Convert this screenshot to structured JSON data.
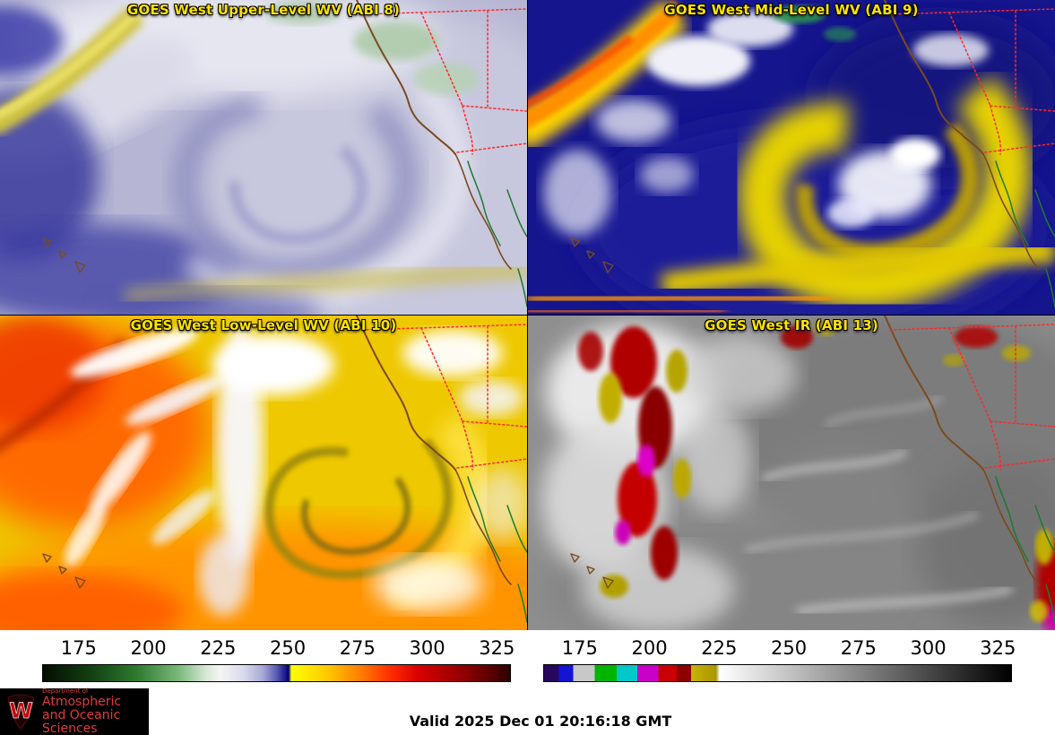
{
  "panels": [
    {
      "title": "GOES West Upper-Level WV (ABI 8)"
    },
    {
      "title": "GOES West Mid-Level WV (ABI 9)"
    },
    {
      "title": "GOES West Low-Level WV (ABI 10)"
    },
    {
      "title": "GOES West IR (ABI 13)"
    }
  ],
  "colorbars": {
    "wv": {
      "ticks": [
        "175",
        "200",
        "225",
        "250",
        "275",
        "300",
        "325"
      ],
      "stops": [
        {
          "c": "#030d03",
          "p": 0
        },
        {
          "c": "#123f12",
          "p": 10
        },
        {
          "c": "#2d7a2d",
          "p": 20
        },
        {
          "c": "#7ab87a",
          "p": 29
        },
        {
          "c": "#d8e8d8",
          "p": 35
        },
        {
          "c": "#f5f5f5",
          "p": 38
        },
        {
          "c": "#d9d9ec",
          "p": 43
        },
        {
          "c": "#a9a9d8",
          "p": 47
        },
        {
          "c": "#5a5ab4",
          "p": 50
        },
        {
          "c": "#16168c",
          "p": 52
        },
        {
          "c": "#00006e",
          "p": 52.6
        },
        {
          "c": "#ffff00",
          "p": 53.2
        },
        {
          "c": "#ffc800",
          "p": 61
        },
        {
          "c": "#ff7d00",
          "p": 68
        },
        {
          "c": "#ff3200",
          "p": 74
        },
        {
          "c": "#dc0000",
          "p": 80
        },
        {
          "c": "#a00000",
          "p": 88
        },
        {
          "c": "#640000",
          "p": 95
        },
        {
          "c": "#2d0000",
          "p": 100
        }
      ]
    },
    "ir": {
      "ticks": [
        "175",
        "200",
        "225",
        "250",
        "275",
        "300",
        "325"
      ],
      "stops": [
        {
          "c": "#28085a",
          "p": 0
        },
        {
          "c": "#28085a",
          "p": 3.2
        },
        {
          "c": "#1414d2",
          "p": 3.2
        },
        {
          "c": "#1414d2",
          "p": 6.2
        },
        {
          "c": "#c8c8c8",
          "p": 6.2
        },
        {
          "c": "#c8c8c8",
          "p": 10.8
        },
        {
          "c": "#00b400",
          "p": 10.8
        },
        {
          "c": "#00b400",
          "p": 15.5
        },
        {
          "c": "#00c8c8",
          "p": 15.5
        },
        {
          "c": "#00c8c8",
          "p": 20
        },
        {
          "c": "#c800c8",
          "p": 20
        },
        {
          "c": "#c800c8",
          "p": 24.5
        },
        {
          "c": "#c80000",
          "p": 24.5
        },
        {
          "c": "#c80000",
          "p": 28.5
        },
        {
          "c": "#8c0000",
          "p": 28.5
        },
        {
          "c": "#8c0000",
          "p": 31.5
        },
        {
          "c": "#c8b400",
          "p": 31.5
        },
        {
          "c": "#a89600",
          "p": 36.8
        },
        {
          "c": "#ffffff",
          "p": 37.6
        },
        {
          "c": "#000000",
          "p": 100
        }
      ]
    }
  },
  "footer": {
    "valid_time": "Valid 2025 Dec 01 20:16:18 GMT",
    "logo": {
      "crest": "W",
      "line0": "Department of",
      "line1": "Atmospheric",
      "line2": "and Oceanic Sciences"
    }
  }
}
